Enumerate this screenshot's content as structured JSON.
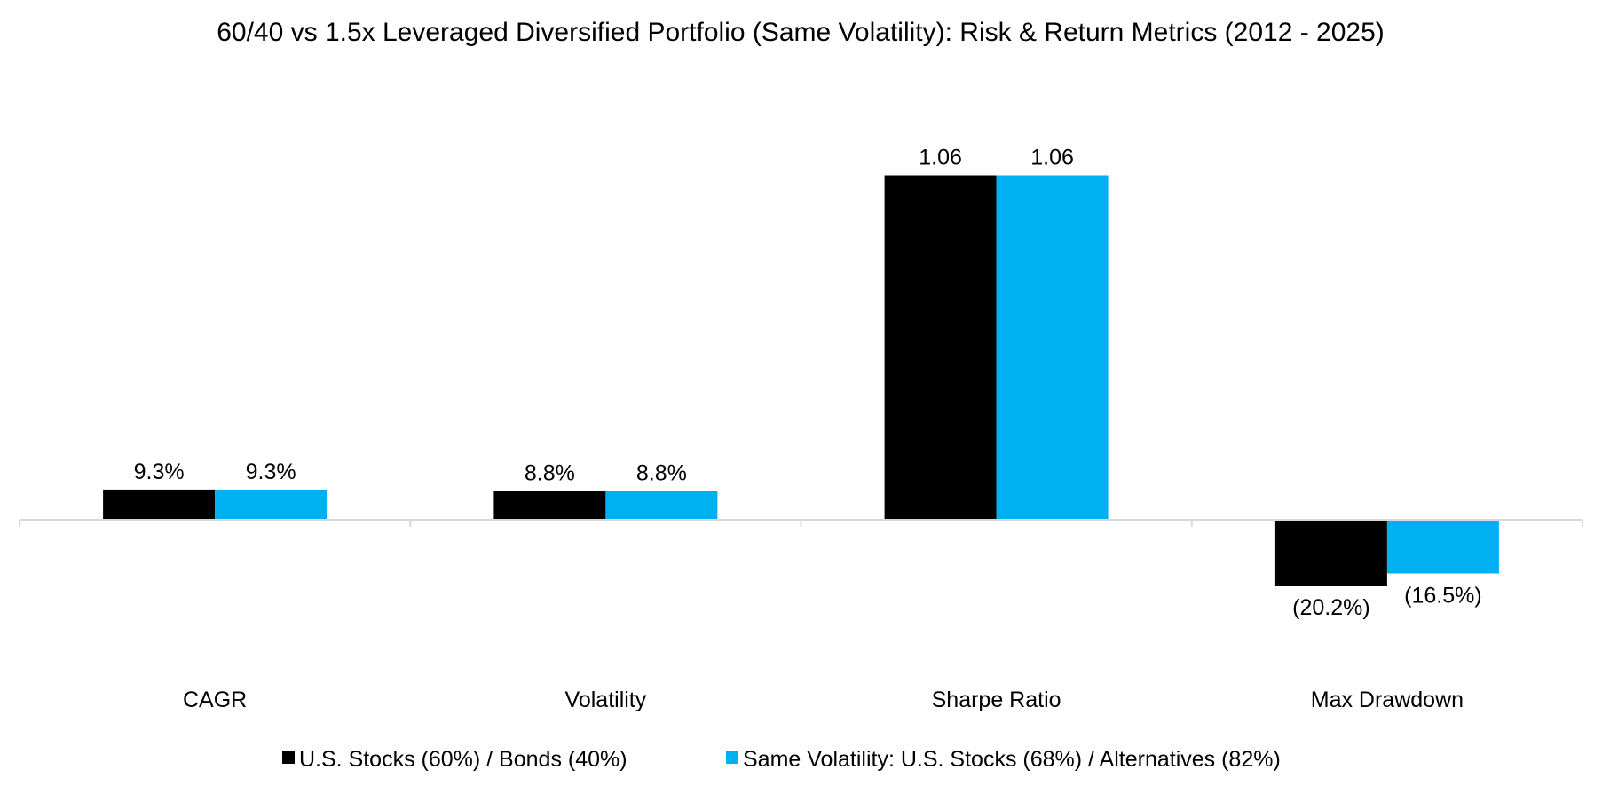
{
  "chart_data": {
    "type": "bar",
    "title": "60/40 vs 1.5x Leveraged Diversified Portfolio (Same Volatility): Risk & Return Metrics (2012 - 2025)",
    "xlabel": "",
    "ylabel": "",
    "categories": [
      "CAGR",
      "Volatility",
      "Sharpe Ratio",
      "Max Drawdown"
    ],
    "series": [
      {
        "name": "U.S. Stocks (60%) / Bonds (40%)",
        "color": "#000000",
        "values": [
          0.093,
          0.088,
          1.06,
          -0.202
        ],
        "labels": [
          "9.3%",
          "8.8%",
          "1.06",
          "(20.2%)"
        ]
      },
      {
        "name": "Same Volatility: U.S. Stocks (68%) / Alternatives (82%)",
        "color": "#00B0F0",
        "values": [
          0.093,
          0.088,
          1.06,
          -0.165
        ],
        "labels": [
          "9.3%",
          "8.8%",
          "1.06",
          "(16.5%)"
        ]
      }
    ],
    "ylim": [
      -0.35,
      1.25
    ],
    "grid": false,
    "axis_color": "#D9D9D9",
    "legend_position": "bottom"
  }
}
